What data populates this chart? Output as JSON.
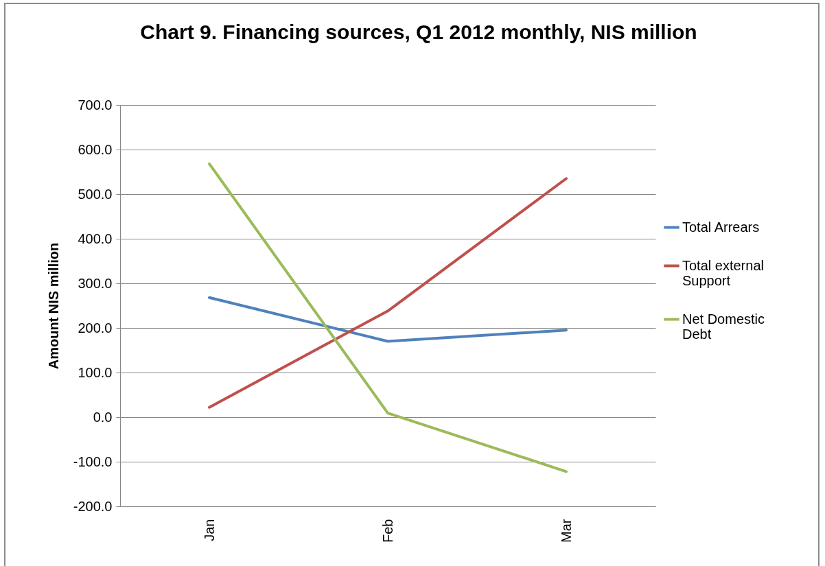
{
  "chart_data": {
    "type": "line",
    "title": "Chart 9. Financing sources, Q1 2012 monthly, NIS million",
    "ylabel": "Amount NIS million",
    "categories": [
      "Jan",
      "Feb",
      "Mar"
    ],
    "series": [
      {
        "name": "Total Arrears",
        "color": "#4f81bd",
        "values": [
          268,
          170,
          195
        ]
      },
      {
        "name": "Total external Support",
        "color": "#c0504d",
        "values": [
          22,
          238,
          535
        ]
      },
      {
        "name": "Net Domestic Debt",
        "color": "#9bbb59",
        "values": [
          568,
          9,
          -122
        ]
      }
    ],
    "ylim": [
      -200,
      700
    ],
    "yticks": [
      {
        "value": -200,
        "label": "-200.0"
      },
      {
        "value": -100,
        "label": "-100.0"
      },
      {
        "value": 0,
        "label": "0.0"
      },
      {
        "value": 100,
        "label": "100.0"
      },
      {
        "value": 200,
        "label": "200.0"
      },
      {
        "value": 300,
        "label": "300.0"
      },
      {
        "value": 400,
        "label": "400.0"
      },
      {
        "value": 500,
        "label": "500.0"
      },
      {
        "value": 600,
        "label": "600.0"
      },
      {
        "value": 700,
        "label": "700.0"
      }
    ],
    "grid": "y",
    "legend": "right",
    "marker": "none",
    "line_style": "solid"
  }
}
